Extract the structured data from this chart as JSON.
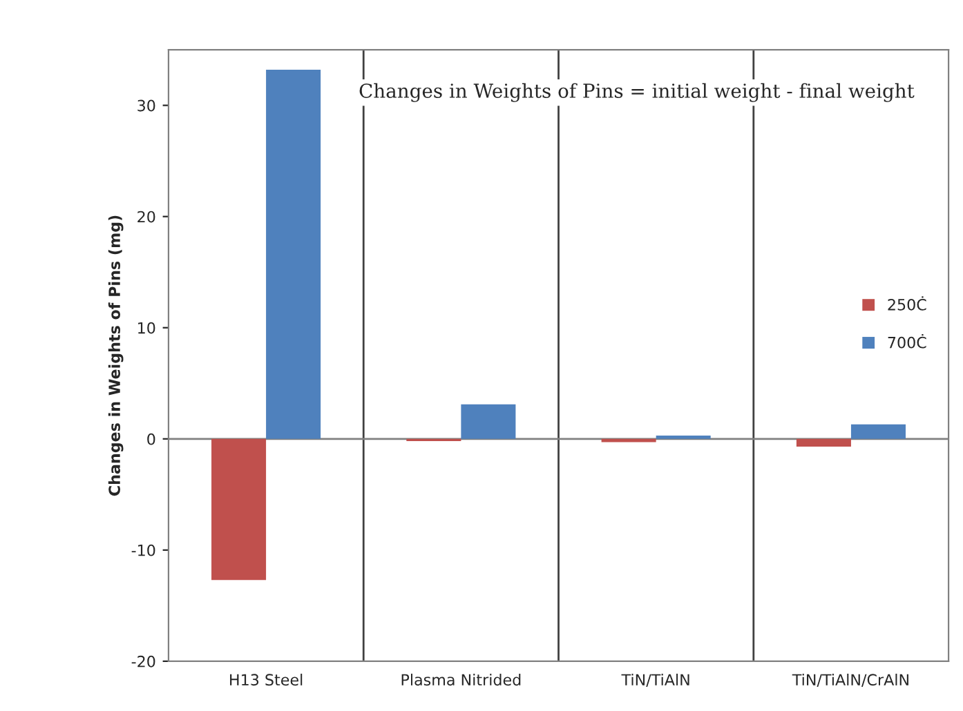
{
  "chart_data": {
    "type": "bar",
    "title": "Changes in Weights of Pins = initial weight - final weight",
    "ylabel": "Changes in Weights of Pins (mg)",
    "categories": [
      "H13 Steel",
      "Plasma Nitrided",
      "TiN/TiAlN",
      "TiN/TiAlN/CrAlN"
    ],
    "series": [
      {
        "name": "250Ċ",
        "color": "#c0504d",
        "values": [
          -12.7,
          -0.2,
          -0.3,
          -0.7
        ]
      },
      {
        "name": "700Ċ",
        "color": "#4f81bd",
        "values": [
          33.2,
          3.1,
          0.3,
          1.3
        ]
      }
    ],
    "ylim": [
      -20,
      35
    ],
    "yticks": [
      -20,
      -10,
      0,
      10,
      20,
      30
    ],
    "grid": "x",
    "legend": "right"
  }
}
